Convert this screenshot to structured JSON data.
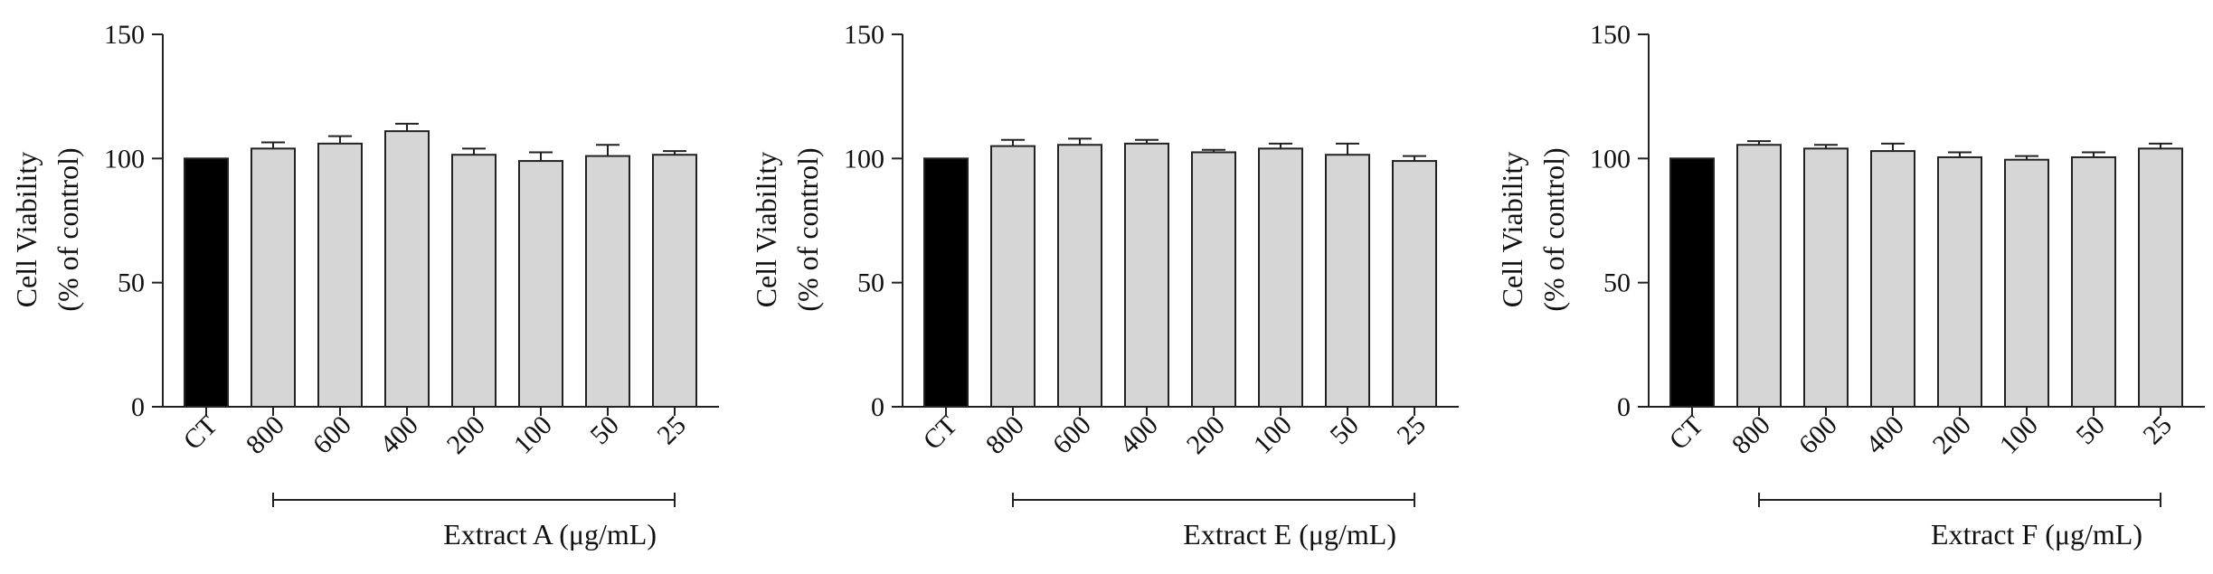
{
  "chart_data": [
    {
      "type": "bar",
      "title": "",
      "ylabel": [
        "Cell Viability",
        "(% of control)"
      ],
      "ylim": [
        0,
        150
      ],
      "yticks": [
        "0",
        "50",
        "100",
        "150"
      ],
      "categories": [
        "CT",
        "800",
        "600",
        "400",
        "200",
        "100",
        "50",
        "25"
      ],
      "values": [
        100,
        104,
        106,
        111,
        101.5,
        99,
        101,
        101.5
      ],
      "errors": [
        0,
        2.5,
        3,
        3,
        2.5,
        3.5,
        4.5,
        1.5
      ],
      "bar_colors": [
        "#000000",
        "#d6d6d6",
        "#d6d6d6",
        "#d6d6d6",
        "#d6d6d6",
        "#d6d6d6",
        "#d6d6d6",
        "#d6d6d6"
      ],
      "group_label": "Extract A (μg/mL)"
    },
    {
      "type": "bar",
      "title": "",
      "ylabel": [
        "Cell Viability",
        "(% of control)"
      ],
      "ylim": [
        0,
        150
      ],
      "yticks": [
        "0",
        "50",
        "100",
        "150"
      ],
      "categories": [
        "CT",
        "800",
        "600",
        "400",
        "200",
        "100",
        "50",
        "25"
      ],
      "values": [
        100,
        105,
        105.5,
        106,
        102.5,
        104,
        101.5,
        99
      ],
      "errors": [
        0,
        2.5,
        2.5,
        1.5,
        1,
        2,
        4.5,
        2
      ],
      "bar_colors": [
        "#000000",
        "#d6d6d6",
        "#d6d6d6",
        "#d6d6d6",
        "#d6d6d6",
        "#d6d6d6",
        "#d6d6d6",
        "#d6d6d6"
      ],
      "group_label": "Extract E (μg/mL)"
    },
    {
      "type": "bar",
      "title": "",
      "ylabel": [
        "Cell Viability",
        "(% of control)"
      ],
      "ylim": [
        0,
        150
      ],
      "yticks": [
        "0",
        "50",
        "100",
        "150"
      ],
      "categories": [
        "CT",
        "800",
        "600",
        "400",
        "200",
        "100",
        "50",
        "25"
      ],
      "values": [
        100,
        105.5,
        104,
        103,
        100.5,
        99.5,
        100.5,
        104
      ],
      "errors": [
        0,
        1.5,
        1.5,
        3,
        2,
        1.5,
        2,
        2
      ],
      "bar_colors": [
        "#000000",
        "#d6d6d6",
        "#d6d6d6",
        "#d6d6d6",
        "#d6d6d6",
        "#d6d6d6",
        "#d6d6d6",
        "#d6d6d6"
      ],
      "group_label": "Extract F (μg/mL)"
    }
  ]
}
